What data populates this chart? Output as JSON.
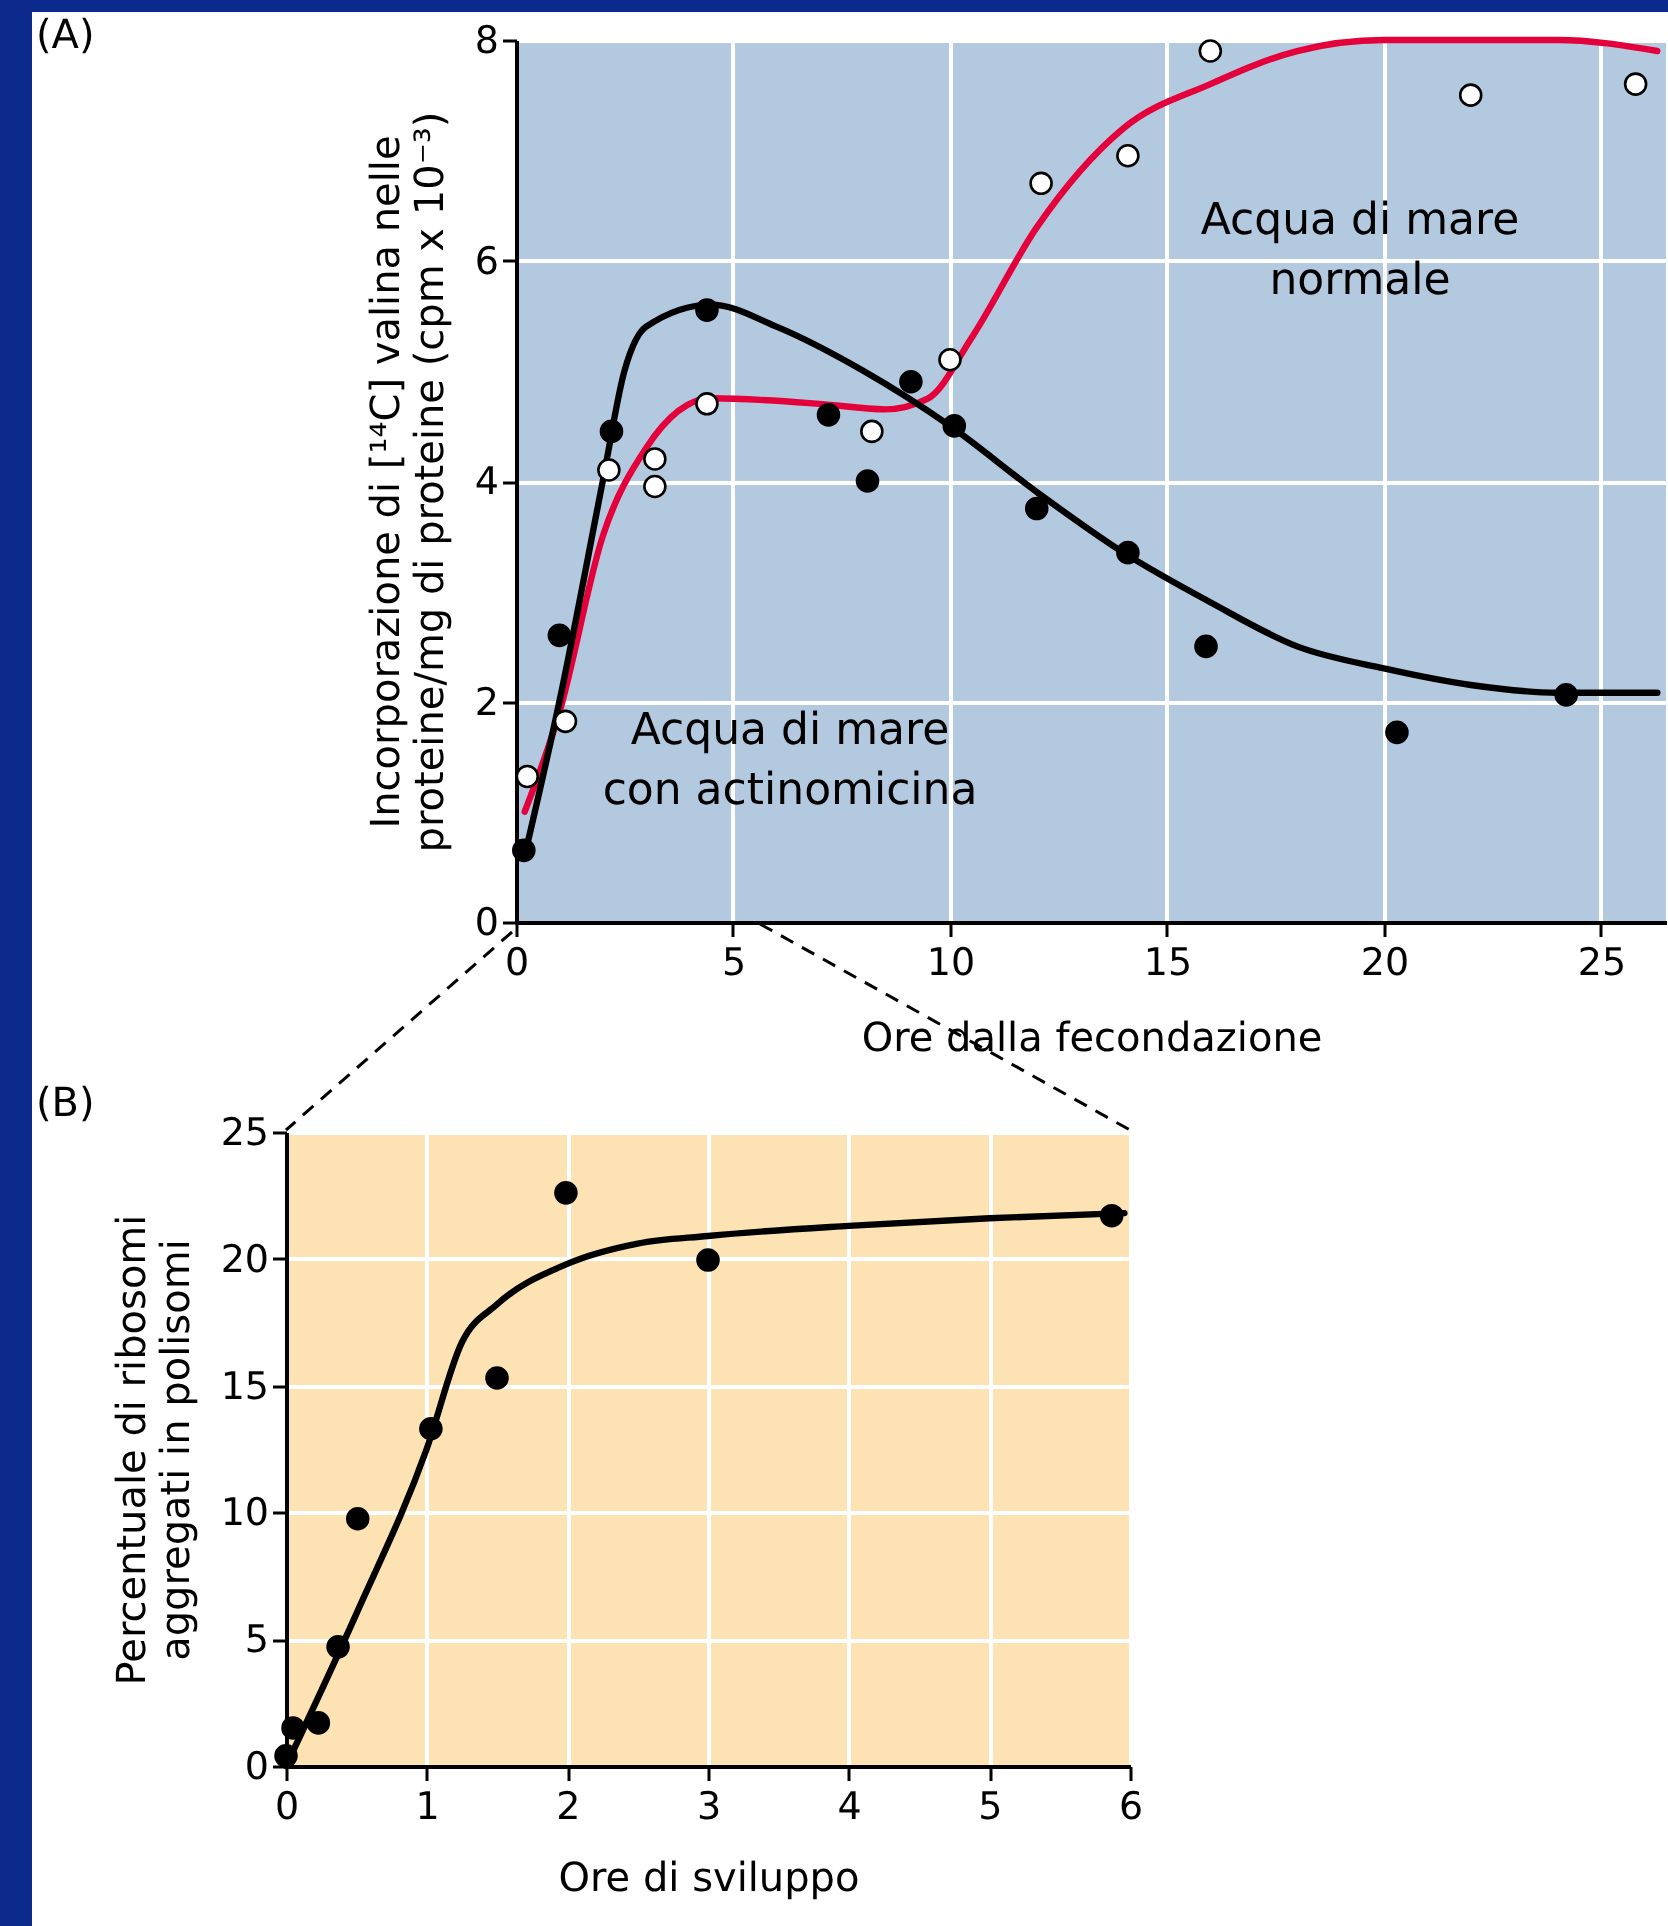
{
  "chart_data": [
    {
      "type": "scatter",
      "xlabel": "Ore dalla fecondazione",
      "ylabel": "Incorporazione di [¹⁴C] valina nelle\nproteine/mg di proteine (cpm x 10⁻³)",
      "xlim": [
        0,
        26.5
      ],
      "ylim": [
        0,
        8
      ],
      "xticks": [
        0,
        5,
        10,
        15,
        20,
        25
      ],
      "yticks": [
        0,
        2,
        4,
        6,
        8
      ],
      "grid": true,
      "annotations": [
        "(A)",
        "Acqua di mare\nnormale",
        "Acqua di mare\ncon actinomicina"
      ],
      "series": [
        {
          "type": "line",
          "color": "#e4003a",
          "x": [
            0.2,
            1,
            2,
            3,
            4.5,
            7,
            8.5,
            9.5,
            10.5,
            12,
            14,
            16,
            18,
            20,
            22,
            24,
            26.3
          ],
          "values": [
            1.0,
            1.9,
            3.5,
            4.3,
            4.75,
            4.7,
            4.65,
            4.75,
            5.3,
            6.3,
            7.2,
            7.6,
            7.9,
            8.0,
            8.0,
            8.0,
            7.9
          ]
        },
        {
          "type": "line",
          "color": "#000000",
          "x": [
            0.2,
            1,
            2,
            2.5,
            3,
            4.5,
            6,
            8,
            10,
            12,
            14,
            16,
            18,
            20,
            22,
            24,
            26.3
          ],
          "values": [
            0.6,
            2.0,
            4.0,
            5.0,
            5.4,
            5.6,
            5.4,
            5.0,
            4.5,
            3.9,
            3.35,
            2.9,
            2.5,
            2.3,
            2.15,
            2.08,
            2.08
          ]
        },
        {
          "marker": "circle",
          "color": "#ffffff",
          "x": [
            0.26,
            1.14,
            2.14,
            3.2,
            3.2,
            4.4,
            8.2,
            10.0,
            12.1,
            14.1,
            16.0,
            22.0,
            25.8
          ],
          "values": [
            1.32,
            1.82,
            4.1,
            4.2,
            3.95,
            4.7,
            4.45,
            5.1,
            6.7,
            6.95,
            7.9,
            7.5,
            7.6
          ]
        },
        {
          "marker": "circle",
          "color": "#000000",
          "x": [
            0.18,
            1.0,
            2.2,
            4.4,
            7.2,
            8.1,
            9.1,
            10.1,
            12.0,
            14.1,
            15.9,
            20.3,
            24.2
          ],
          "values": [
            0.65,
            2.6,
            4.45,
            5.55,
            4.6,
            4.0,
            4.9,
            4.5,
            3.75,
            3.35,
            2.5,
            1.72,
            2.06
          ]
        }
      ]
    },
    {
      "type": "scatter",
      "xlabel": "Ore di sviluppo",
      "ylabel": "Percentuale di ribosomi\naggregati in polisomi",
      "xlim": [
        0,
        6
      ],
      "ylim": [
        0,
        25
      ],
      "xticks": [
        0,
        1,
        2,
        3,
        4,
        5,
        6
      ],
      "yticks": [
        0,
        5,
        10,
        15,
        20,
        25
      ],
      "grid": true,
      "annotations": [
        "(B)"
      ],
      "series": [
        {
          "type": "line",
          "color": "#000000",
          "x": [
            0,
            0.5,
            1,
            1.25,
            1.5,
            2,
            2.5,
            3,
            4,
            5,
            5.96
          ],
          "values": [
            0,
            6,
            12.5,
            16.7,
            18.2,
            19.8,
            20.6,
            20.9,
            21.3,
            21.6,
            21.8
          ]
        },
        {
          "marker": "circle",
          "color": "#000000",
          "x": [
            0,
            0.05,
            0.23,
            0.37,
            0.51,
            1.03,
            1.5,
            1.99,
            3.0,
            5.87
          ],
          "values": [
            0.4,
            1.5,
            1.7,
            4.7,
            9.75,
            13.3,
            15.3,
            22.6,
            19.95,
            21.7
          ]
        }
      ]
    }
  ]
}
